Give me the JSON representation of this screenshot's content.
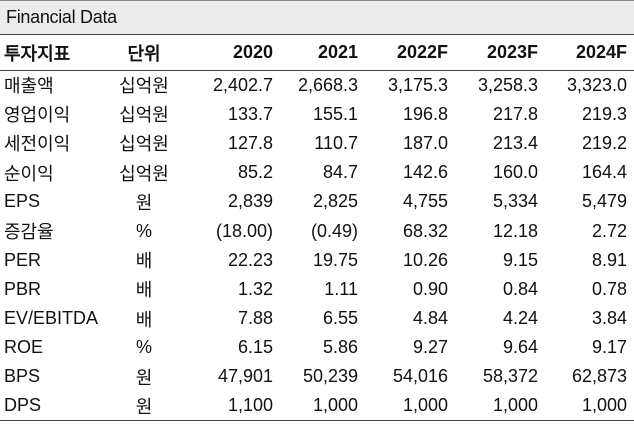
{
  "title": "Financial Data",
  "headers": {
    "label": "투자지표",
    "unit": "단위",
    "years": [
      "2020",
      "2021",
      "2022F",
      "2023F",
      "2024F"
    ]
  },
  "rows": [
    {
      "label": "매출액",
      "unit": "십억원",
      "values": [
        "2,402.7",
        "2,668.3",
        "3,175.3",
        "3,258.3",
        "3,323.0"
      ]
    },
    {
      "label": "영업이익",
      "unit": "십억원",
      "values": [
        "133.7",
        "155.1",
        "196.8",
        "217.8",
        "219.3"
      ]
    },
    {
      "label": "세전이익",
      "unit": "십억원",
      "values": [
        "127.8",
        "110.7",
        "187.0",
        "213.4",
        "219.2"
      ]
    },
    {
      "label": "순이익",
      "unit": "십억원",
      "values": [
        "85.2",
        "84.7",
        "142.6",
        "160.0",
        "164.4"
      ]
    },
    {
      "label": "EPS",
      "unit": "원",
      "values": [
        "2,839",
        "2,825",
        "4,755",
        "5,334",
        "5,479"
      ]
    },
    {
      "label": "증감율",
      "unit": "%",
      "values": [
        "(18.00)",
        "(0.49)",
        "68.32",
        "12.18",
        "2.72"
      ]
    },
    {
      "label": "PER",
      "unit": "배",
      "values": [
        "22.23",
        "19.75",
        "10.26",
        "9.15",
        "8.91"
      ]
    },
    {
      "label": "PBR",
      "unit": "배",
      "values": [
        "1.32",
        "1.11",
        "0.90",
        "0.84",
        "0.78"
      ]
    },
    {
      "label": "EV/EBITDA",
      "unit": "배",
      "values": [
        "7.88",
        "6.55",
        "4.84",
        "4.24",
        "3.84"
      ]
    },
    {
      "label": "ROE",
      "unit": "%",
      "values": [
        "6.15",
        "5.86",
        "9.27",
        "9.64",
        "9.17"
      ]
    },
    {
      "label": "BPS",
      "unit": "원",
      "values": [
        "47,901",
        "50,239",
        "54,016",
        "58,372",
        "62,873"
      ]
    },
    {
      "label": "DPS",
      "unit": "원",
      "values": [
        "1,100",
        "1,000",
        "1,000",
        "1,000",
        "1,000"
      ]
    }
  ]
}
